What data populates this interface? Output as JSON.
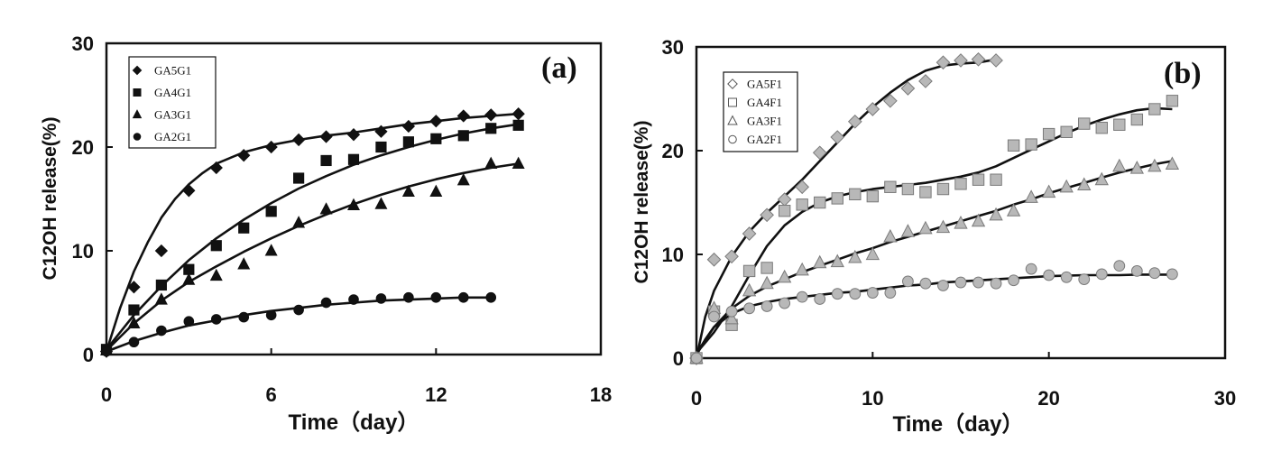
{
  "chart_data": [
    {
      "type": "scatter",
      "panel_label": "(a)",
      "xlabel": "Time（day）",
      "ylabel": "C12OH release(%)",
      "xlim": [
        0,
        18
      ],
      "ylim": [
        0,
        30
      ],
      "xticks": [
        0,
        6,
        12,
        18
      ],
      "yticks": [
        0,
        10,
        20,
        30
      ],
      "xtick_labels": [
        "0",
        "6",
        "12",
        "18"
      ],
      "ytick_labels": [
        "0",
        "10",
        "20",
        "30"
      ],
      "grid": false,
      "legend_position": "top-left",
      "marker_color": "#111111",
      "series": [
        {
          "name": "GA5G1",
          "marker": "diamond",
          "x": [
            0,
            1,
            2,
            3,
            4,
            5,
            6,
            7,
            8,
            9,
            10,
            11,
            12,
            13,
            14,
            15
          ],
          "y": [
            0.3,
            6.5,
            10,
            15.8,
            18,
            19.2,
            20,
            20.7,
            21,
            21.2,
            21.5,
            22,
            22.5,
            23,
            23.1,
            23.2
          ],
          "fit_x": [
            0,
            0.5,
            1,
            1.5,
            2,
            2.5,
            3,
            3.5,
            4,
            5,
            6,
            7,
            8,
            9,
            10,
            11,
            12,
            13,
            14,
            15
          ],
          "fit_y": [
            0.3,
            4.5,
            8,
            10.8,
            13.2,
            15,
            16.4,
            17.5,
            18.4,
            19.5,
            20.2,
            20.7,
            21.1,
            21.4,
            21.8,
            22.2,
            22.5,
            22.8,
            23,
            23.2
          ]
        },
        {
          "name": "GA4G1",
          "marker": "square",
          "x": [
            0,
            1,
            2,
            3,
            4,
            5,
            6,
            7,
            8,
            9,
            10,
            11,
            12,
            13,
            14,
            15
          ],
          "y": [
            0.5,
            4.3,
            6.7,
            8.2,
            10.5,
            12.2,
            13.8,
            17,
            18.7,
            18.8,
            20,
            20.5,
            20.8,
            21.1,
            21.8,
            22.1
          ],
          "fit_x": [
            0,
            1,
            2,
            3,
            4,
            5,
            6,
            7,
            8,
            9,
            10,
            11,
            12,
            13,
            14,
            15
          ],
          "fit_y": [
            0.5,
            3.8,
            6.6,
            9.1,
            11.2,
            13.0,
            14.6,
            16.0,
            17.2,
            18.3,
            19.2,
            20.0,
            20.7,
            21.3,
            21.8,
            22.2
          ]
        },
        {
          "name": "GA3G1",
          "marker": "triangle",
          "x": [
            0,
            1,
            2,
            3,
            4,
            5,
            6,
            7,
            8,
            9,
            10,
            11,
            12,
            13,
            14,
            15
          ],
          "y": [
            0.4,
            3,
            5.3,
            7.2,
            7.6,
            8.7,
            10,
            12.7,
            14,
            14.4,
            14.5,
            15.7,
            15.7,
            16.8,
            18.4,
            18.4
          ],
          "fit_x": [
            0,
            1,
            2,
            3,
            4,
            5,
            6,
            7,
            8,
            9,
            10,
            11,
            12,
            13,
            14,
            15
          ],
          "fit_y": [
            0.4,
            3.0,
            5.2,
            7.0,
            8.5,
            9.9,
            11.2,
            12.4,
            13.5,
            14.5,
            15.4,
            16.2,
            16.9,
            17.5,
            18.0,
            18.4
          ]
        },
        {
          "name": "GA2G1",
          "marker": "circle",
          "x": [
            0,
            1,
            2,
            3,
            4,
            5,
            6,
            7,
            8,
            9,
            10,
            11,
            12,
            13,
            14
          ],
          "y": [
            0.3,
            1.2,
            2.3,
            3.2,
            3.4,
            3.6,
            3.8,
            4.3,
            5,
            5.3,
            5.4,
            5.5,
            5.5,
            5.5,
            5.5
          ],
          "fit_x": [
            0,
            1,
            2,
            3,
            4,
            5,
            6,
            7,
            8,
            9,
            10,
            11,
            12,
            13,
            14
          ],
          "fit_y": [
            0.3,
            1.3,
            2.1,
            2.8,
            3.3,
            3.8,
            4.2,
            4.5,
            4.8,
            5.0,
            5.2,
            5.3,
            5.4,
            5.5,
            5.5
          ]
        }
      ]
    },
    {
      "type": "scatter",
      "panel_label": "(b)",
      "xlabel": "Time（day）",
      "ylabel": "C12OH release(%)",
      "xlim": [
        0,
        30
      ],
      "ylim": [
        0,
        30
      ],
      "xticks": [
        0,
        10,
        20,
        30
      ],
      "yticks": [
        0,
        10,
        20,
        30
      ],
      "xtick_labels": [
        "0",
        "10",
        "20",
        "30"
      ],
      "ytick_labels": [
        "0",
        "10",
        "20",
        "30"
      ],
      "grid": false,
      "legend_position": "top-left",
      "marker_color": "#b8b8b8",
      "series": [
        {
          "name": "GA5F1",
          "marker": "diamond",
          "x": [
            0,
            1,
            2,
            3,
            4,
            5,
            6,
            7,
            8,
            9,
            10,
            11,
            12,
            13,
            14,
            15,
            16,
            17
          ],
          "y": [
            0,
            9.5,
            9.8,
            12,
            13.8,
            15.3,
            16.5,
            19.8,
            21.3,
            22.8,
            24,
            24.8,
            26,
            26.7,
            28.5,
            28.7,
            28.8,
            28.7
          ],
          "fit_x": [
            0,
            0.5,
            1,
            2,
            3,
            4,
            5,
            6,
            7,
            8,
            9,
            10,
            11,
            12,
            13,
            14,
            15,
            16,
            17
          ],
          "fit_y": [
            0,
            4,
            6.5,
            9.8,
            12.2,
            14.0,
            15.6,
            17.2,
            19.0,
            20.8,
            22.6,
            24.2,
            25.6,
            26.8,
            27.7,
            28.2,
            28.4,
            28.5,
            28.8
          ]
        },
        {
          "name": "GA4F1",
          "marker": "square",
          "x": [
            0,
            1,
            2,
            3,
            4,
            5,
            6,
            7,
            8,
            9,
            10,
            11,
            12,
            13,
            14,
            15,
            16,
            17,
            18,
            19,
            20,
            21,
            22,
            23,
            24,
            25,
            26,
            27
          ],
          "y": [
            0,
            4.5,
            3.2,
            8.4,
            8.7,
            14.2,
            14.8,
            15,
            15.4,
            15.8,
            15.6,
            16.5,
            16.3,
            16,
            16.3,
            16.8,
            17.2,
            17.2,
            20.5,
            20.6,
            21.6,
            21.8,
            22.6,
            22.2,
            22.5,
            23,
            24,
            24.8
          ],
          "fit_x": [
            0,
            0.5,
            1,
            2,
            3,
            4,
            5,
            6,
            7,
            8,
            9,
            10,
            11,
            12,
            13,
            14,
            15,
            16,
            17,
            18,
            19,
            20,
            21,
            22,
            23,
            24,
            25,
            26,
            27
          ],
          "fit_y": [
            0.5,
            1.5,
            2.5,
            5.0,
            8.0,
            10.8,
            12.8,
            14.1,
            15.0,
            15.6,
            16.0,
            16.3,
            16.5,
            16.7,
            16.9,
            17.2,
            17.5,
            17.9,
            18.5,
            19.3,
            20.1,
            20.9,
            21.7,
            22.4,
            23.0,
            23.5,
            23.9,
            24.1,
            24.0
          ]
        },
        {
          "name": "GA3F1",
          "marker": "triangle",
          "x": [
            0,
            1,
            2,
            3,
            4,
            5,
            6,
            7,
            8,
            9,
            10,
            11,
            12,
            13,
            14,
            15,
            16,
            17,
            18,
            19,
            20,
            21,
            22,
            23,
            24,
            25,
            26,
            27
          ],
          "y": [
            0,
            4.8,
            3.8,
            6.5,
            7.2,
            7.8,
            8.5,
            9.2,
            9.3,
            9.7,
            10,
            11.7,
            12.2,
            12.5,
            12.6,
            13,
            13.2,
            13.8,
            14.2,
            15.5,
            16,
            16.5,
            16.7,
            17.2,
            18.5,
            18.3,
            18.5,
            18.7
          ],
          "fit_x": [
            0,
            1,
            2,
            3,
            4,
            5,
            6,
            7,
            8,
            9,
            10,
            11,
            12,
            13,
            14,
            15,
            16,
            17,
            18,
            19,
            20,
            21,
            22,
            23,
            24,
            25,
            26,
            27
          ],
          "fit_y": [
            0.5,
            3.0,
            4.8,
            6.0,
            6.9,
            7.6,
            8.3,
            8.9,
            9.5,
            10.1,
            10.6,
            11.2,
            11.7,
            12.2,
            12.7,
            13.2,
            13.7,
            14.2,
            14.8,
            15.3,
            15.9,
            16.4,
            16.9,
            17.4,
            17.9,
            18.3,
            18.7,
            19.0
          ]
        },
        {
          "name": "GA2F1",
          "marker": "circle",
          "x": [
            0,
            1,
            2,
            3,
            4,
            5,
            6,
            7,
            8,
            9,
            10,
            11,
            12,
            13,
            14,
            15,
            16,
            17,
            18,
            19,
            20,
            21,
            22,
            23,
            24,
            25,
            26,
            27
          ],
          "y": [
            0,
            4,
            4.5,
            4.8,
            5,
            5.3,
            5.9,
            5.7,
            6.2,
            6.2,
            6.3,
            6.3,
            7.4,
            7.2,
            7,
            7.3,
            7.3,
            7.2,
            7.5,
            8.6,
            8,
            7.8,
            7.6,
            8.1,
            8.9,
            8.4,
            8.2,
            8.1
          ],
          "fit_x": [
            0,
            0.5,
            1,
            2,
            3,
            4,
            5,
            6,
            7,
            8,
            9,
            10,
            11,
            12,
            13,
            14,
            15,
            16,
            17,
            18,
            19,
            20,
            21,
            22,
            23,
            24,
            25,
            26,
            27
          ],
          "fit_y": [
            0.3,
            1.8,
            3.0,
            4.3,
            5.0,
            5.4,
            5.7,
            5.9,
            6.1,
            6.3,
            6.4,
            6.6,
            6.8,
            7.0,
            7.1,
            7.3,
            7.4,
            7.5,
            7.6,
            7.7,
            7.8,
            7.9,
            7.95,
            8.0,
            8.0,
            8.0,
            8.05,
            8.05,
            8.05
          ]
        }
      ]
    }
  ]
}
